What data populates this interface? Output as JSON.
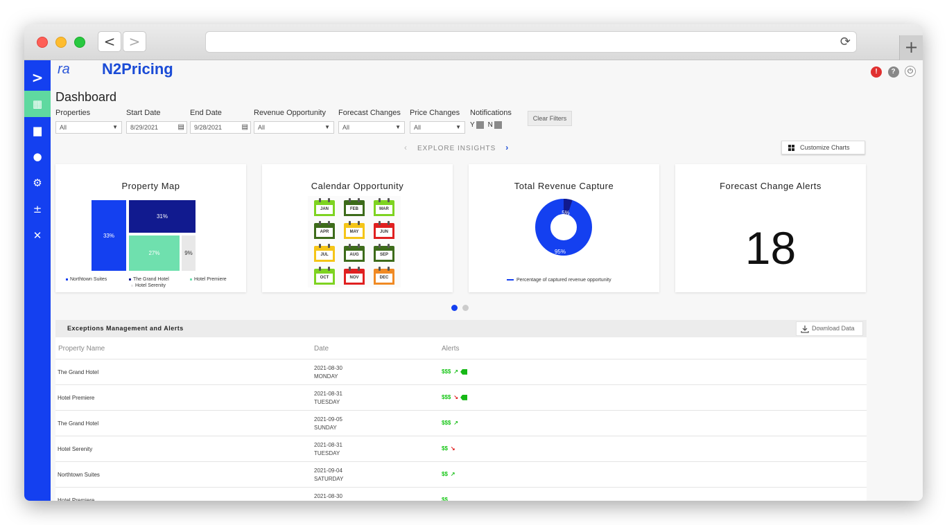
{
  "browser": {
    "back": "<",
    "forward": ">",
    "new_tab": "+",
    "reload": "⟳"
  },
  "app": {
    "logo_short": "ra",
    "name": "N2Pricing"
  },
  "sidebar": {
    "toggle": ">"
  },
  "page": {
    "title": "Dashboard"
  },
  "filters": {
    "properties": {
      "label": "Properties",
      "value": "All"
    },
    "start_date": {
      "label": "Start Date",
      "value": "8/29/2021"
    },
    "end_date": {
      "label": "End Date",
      "value": "9/28/2021"
    },
    "revenue_opportunity": {
      "label": "Revenue Opportunity",
      "value": "All"
    },
    "forecast_changes": {
      "label": "Forecast Changes",
      "value": "All"
    },
    "price_changes": {
      "label": "Price Changes",
      "value": "All"
    },
    "notifications": {
      "label": "Notifications",
      "y": "Y",
      "n": "N"
    },
    "clear": "Clear Filters"
  },
  "insights": {
    "label": "EXPLORE INSIGHTS",
    "customize": "Customize Charts"
  },
  "cards": {
    "property_map": {
      "title": "Property Map",
      "cells": [
        {
          "label": "33%",
          "color": "#1440f0"
        },
        {
          "label": "31%",
          "color": "#111a8f"
        },
        {
          "label": "27%",
          "color": "#6fe0ae"
        },
        {
          "label": "9%",
          "color": "#e8e8e8"
        }
      ],
      "legend": [
        {
          "name": "Northtown Suites",
          "color": "#1440f0"
        },
        {
          "name": "The Grand Hotel",
          "color": "#111a8f"
        },
        {
          "name": "Hotel Premiere",
          "color": "#6fe0ae"
        },
        {
          "name": "Hotel Serenity",
          "color": "#e8e8e8"
        }
      ]
    },
    "calendar": {
      "title": "Calendar Opportunity",
      "months": [
        {
          "m": "JAN",
          "color": "#7ed321"
        },
        {
          "m": "FEB",
          "color": "#3d6b1a"
        },
        {
          "m": "MAR",
          "color": "#7ed321"
        },
        {
          "m": "APR",
          "color": "#3d6b1a"
        },
        {
          "m": "MAY",
          "color": "#f5c518"
        },
        {
          "m": "JUN",
          "color": "#e02020"
        },
        {
          "m": "JUL",
          "color": "#f5c518"
        },
        {
          "m": "AUG",
          "color": "#3d6b1a"
        },
        {
          "m": "SEP",
          "color": "#3d6b1a"
        },
        {
          "m": "OCT",
          "color": "#7ed321"
        },
        {
          "m": "NOV",
          "color": "#e02020"
        },
        {
          "m": "DEC",
          "color": "#f08a24"
        }
      ]
    },
    "revenue": {
      "title": "Total Revenue Capture",
      "captured_label": "95%",
      "remaining_label": "5%",
      "captured_fraction": 0.95,
      "legend": "Percentage of captured revenue opportunity",
      "colors": {
        "captured": "#1440f0",
        "remaining": "#111a8f"
      }
    },
    "forecast": {
      "title": "Forecast Change Alerts",
      "value": "18"
    }
  },
  "exceptions": {
    "title": "Exceptions Management and Alerts",
    "download": "Download Data",
    "columns": {
      "property": "Property Name",
      "date": "Date",
      "alerts": "Alerts"
    },
    "rows": [
      {
        "property": "The Grand Hotel",
        "date": "2021-08-30",
        "day": "MONDAY",
        "money": "$$$",
        "trend": "up",
        "tag": true
      },
      {
        "property": "Hotel Premiere",
        "date": "2021-08-31",
        "day": "TUESDAY",
        "money": "$$$",
        "trend": "down",
        "tag": true
      },
      {
        "property": "The Grand Hotel",
        "date": "2021-09-05",
        "day": "SUNDAY",
        "money": "$$$",
        "trend": "up",
        "tag": false
      },
      {
        "property": "Hotel Serenity",
        "date": "2021-08-31",
        "day": "TUESDAY",
        "money": "$$",
        "trend": "down",
        "tag": false
      },
      {
        "property": "Northtown Suites",
        "date": "2021-09-04",
        "day": "SATURDAY",
        "money": "$$",
        "trend": "up",
        "tag": false
      },
      {
        "property": "Hotel Premiere",
        "date": "2021-08-30",
        "day": "",
        "money": "$$",
        "trend": "",
        "tag": false
      }
    ]
  }
}
